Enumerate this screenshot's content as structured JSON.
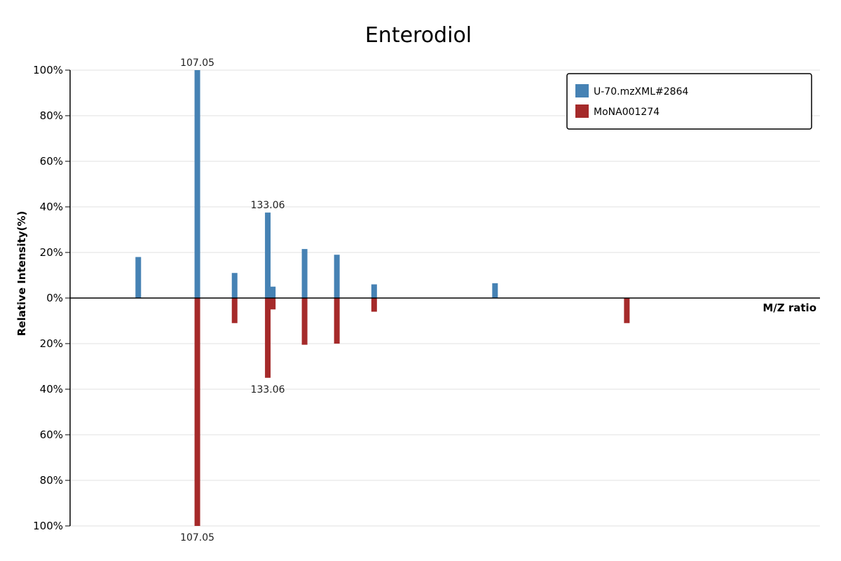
{
  "chart_data": {
    "type": "bar",
    "title": "Enterodiol",
    "xlabel": "M/Z ratio",
    "ylabel": "Relative Intensity(%)",
    "ylim": [
      -100,
      100
    ],
    "y_ticks": [
      "100%",
      "80%",
      "60%",
      "40%",
      "20%",
      "0%",
      "20%",
      "40%",
      "60%",
      "80%",
      "100%"
    ],
    "grid": true,
    "legend": "top-right",
    "xlim": [
      77,
      242
    ],
    "series": [
      {
        "name": "U-70.mzXML#2864",
        "color": "#4682b4",
        "direction": "up",
        "points": [
          {
            "x": 92.0,
            "y": 18
          },
          {
            "x": 105.0,
            "y": 100
          },
          {
            "x": 113.2,
            "y": 11
          },
          {
            "x": 120.5,
            "y": 37.5
          },
          {
            "x": 121.6,
            "y": 5
          },
          {
            "x": 128.6,
            "y": 21.5
          },
          {
            "x": 135.7,
            "y": 19
          },
          {
            "x": 143.9,
            "y": 6
          },
          {
            "x": 170.5,
            "y": 6.5
          }
        ],
        "labels": [
          {
            "x": 105.0,
            "y": 100,
            "text": "107.05"
          },
          {
            "x": 120.5,
            "y": 37.5,
            "text": "133.06"
          }
        ]
      },
      {
        "name": "MoNA001274",
        "color": "#a52a2a",
        "direction": "down",
        "points": [
          {
            "x": 105.0,
            "y": 100
          },
          {
            "x": 113.2,
            "y": 11
          },
          {
            "x": 120.5,
            "y": 35
          },
          {
            "x": 121.6,
            "y": 5
          },
          {
            "x": 128.6,
            "y": 20.5
          },
          {
            "x": 135.7,
            "y": 20
          },
          {
            "x": 143.9,
            "y": 6
          },
          {
            "x": 199.5,
            "y": 11
          }
        ],
        "labels": [
          {
            "x": 105.0,
            "y": 100,
            "text": "107.05"
          },
          {
            "x": 120.5,
            "y": 35,
            "text": "133.06"
          }
        ]
      }
    ]
  }
}
